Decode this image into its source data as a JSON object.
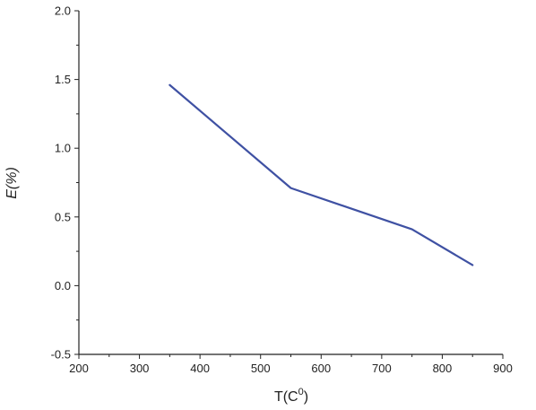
{
  "chart_data": {
    "type": "line",
    "title": "",
    "xlabel": "T(C",
    "xlabel_superscript": "0",
    "xlabel_close": ")",
    "ylabel": "E(%)",
    "xlim": [
      200,
      900
    ],
    "ylim": [
      -0.5,
      2.0
    ],
    "x_major_ticks": [
      200,
      300,
      400,
      500,
      600,
      700,
      800,
      900
    ],
    "x_tick_labels": [
      "200",
      "300",
      "400",
      "500",
      "600",
      "700",
      "800",
      "900"
    ],
    "y_major_ticks": [
      -0.5,
      0.0,
      0.5,
      1.0,
      1.5,
      2.0
    ],
    "y_tick_labels": [
      "-0.5",
      "0.0",
      "0.5",
      "1.0",
      "1.5",
      "2.0"
    ],
    "grid": false,
    "legend": "none",
    "series": [
      {
        "color": "#3f51a3",
        "x": [
          350,
          550,
          750,
          850
        ],
        "y": [
          1.46,
          0.71,
          0.41,
          0.15
        ]
      }
    ]
  }
}
